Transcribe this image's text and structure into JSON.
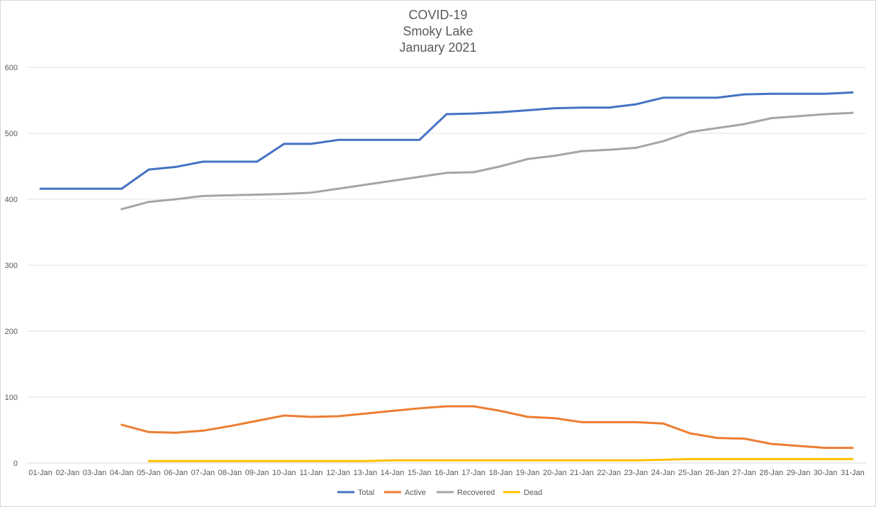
{
  "chart_data": {
    "type": "line",
    "title_lines": [
      "COVID-19",
      "Smoky Lake",
      "January 2021"
    ],
    "xlabel": "",
    "ylabel": "",
    "ylim": [
      0,
      600
    ],
    "y_ticks": [
      0,
      100,
      200,
      300,
      400,
      500,
      600
    ],
    "grid": true,
    "legend_position": "bottom",
    "categories": [
      "01-Jan",
      "02-Jan",
      "03-Jan",
      "04-Jan",
      "05-Jan",
      "06-Jan",
      "07-Jan",
      "08-Jan",
      "09-Jan",
      "10-Jan",
      "11-Jan",
      "12-Jan",
      "13-Jan",
      "14-Jan",
      "15-Jan",
      "16-Jan",
      "17-Jan",
      "18-Jan",
      "19-Jan",
      "20-Jan",
      "21-Jan",
      "22-Jan",
      "23-Jan",
      "24-Jan",
      "25-Jan",
      "26-Jan",
      "27-Jan",
      "28-Jan",
      "29-Jan",
      "30-Jan",
      "31-Jan"
    ],
    "series": [
      {
        "name": "Total",
        "color": "#4472c4",
        "values": [
          416,
          416,
          416,
          416,
          445,
          449,
          457,
          457,
          457,
          484,
          484,
          490,
          490,
          490,
          490,
          529,
          530,
          532,
          535,
          538,
          539,
          539,
          544,
          554,
          554,
          554,
          559,
          560,
          560,
          560,
          562
        ]
      },
      {
        "name": "Active",
        "color": "#ed7d31",
        "values": [
          null,
          null,
          null,
          58,
          47,
          46,
          49,
          56,
          64,
          72,
          70,
          71,
          75,
          79,
          83,
          86,
          86,
          79,
          70,
          68,
          62,
          62,
          62,
          60,
          45,
          38,
          37,
          29,
          26,
          23,
          23
        ]
      },
      {
        "name": "Recovered",
        "color": "#a5a5a5",
        "values": [
          null,
          null,
          null,
          385,
          396,
          400,
          405,
          406,
          407,
          408,
          410,
          416,
          422,
          428,
          434,
          440,
          441,
          450,
          461,
          466,
          473,
          475,
          478,
          488,
          502,
          508,
          514,
          523,
          526,
          529,
          531
        ]
      },
      {
        "name": "Dead",
        "color": "#ffc000",
        "values": [
          null,
          null,
          null,
          null,
          3,
          3,
          3,
          3,
          3,
          3,
          3,
          3,
          3,
          4,
          4,
          4,
          4,
          4,
          4,
          4,
          4,
          4,
          4,
          5,
          6,
          6,
          6,
          6,
          6,
          6,
          6
        ]
      }
    ]
  }
}
